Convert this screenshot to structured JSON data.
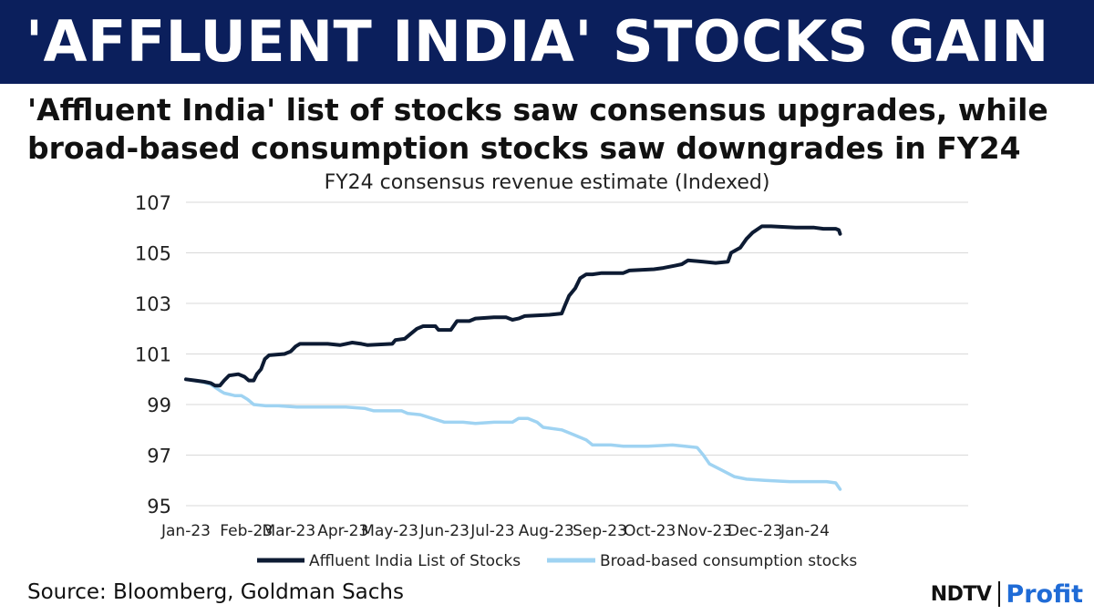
{
  "header": {
    "title": "'AFFLUENT INDIA' STOCKS GAIN",
    "subtitle_line1": "'Affluent India' list of stocks saw consensus upgrades, while",
    "subtitle_line2": "broad-based consumption stocks saw downgrades in FY24"
  },
  "footer": {
    "source": "Source: Bloomberg, Goldman Sachs",
    "logo_left": "NDTV",
    "logo_right": "Profit"
  },
  "colors": {
    "banner": "#0b1f5c",
    "affluent": "#0d1b33",
    "broad": "#9fd3f2",
    "profit": "#1f6bd6"
  },
  "chart_data": {
    "type": "line",
    "title": "FY24 consensus revenue estimate (Indexed)",
    "xlabel": "",
    "ylabel": "",
    "ylim": [
      95,
      107
    ],
    "yticks": [
      95,
      97,
      99,
      101,
      103,
      105,
      107
    ],
    "grid": true,
    "legend_position": "bottom",
    "xlim": [
      0,
      12.7
    ],
    "x_ticks": [
      {
        "label": "Jan-23",
        "x": 0
      },
      {
        "label": "Feb-23",
        "x": 0.98
      },
      {
        "label": "Mar-23",
        "x": 1.67
      },
      {
        "label": "Apr-23",
        "x": 2.55
      },
      {
        "label": "May-23",
        "x": 3.31
      },
      {
        "label": "Jun-23",
        "x": 4.2
      },
      {
        "label": "Jul-23",
        "x": 4.98
      },
      {
        "label": "Aug-23",
        "x": 5.85
      },
      {
        "label": "Sep-23",
        "x": 6.72
      },
      {
        "label": "Oct-23",
        "x": 7.53
      },
      {
        "label": "Nov-23",
        "x": 8.42
      },
      {
        "label": "Dec-23",
        "x": 9.24
      },
      {
        "label": "Jan-24",
        "x": 10.05
      }
    ],
    "series": [
      {
        "name": "Affluent India List of Stocks",
        "color": "#0d1b33",
        "points": [
          [
            0.0,
            100.0
          ],
          [
            0.15,
            99.95
          ],
          [
            0.3,
            99.9
          ],
          [
            0.4,
            99.85
          ],
          [
            0.47,
            99.75
          ],
          [
            0.55,
            99.75
          ],
          [
            0.62,
            99.95
          ],
          [
            0.7,
            100.15
          ],
          [
            0.85,
            100.2
          ],
          [
            0.95,
            100.1
          ],
          [
            1.02,
            99.95
          ],
          [
            1.1,
            99.95
          ],
          [
            1.15,
            100.2
          ],
          [
            1.22,
            100.4
          ],
          [
            1.28,
            100.8
          ],
          [
            1.35,
            100.95
          ],
          [
            1.6,
            101.0
          ],
          [
            1.7,
            101.1
          ],
          [
            1.78,
            101.3
          ],
          [
            1.85,
            101.4
          ],
          [
            2.3,
            101.4
          ],
          [
            2.5,
            101.35
          ],
          [
            2.7,
            101.45
          ],
          [
            2.85,
            101.4
          ],
          [
            2.95,
            101.35
          ],
          [
            3.35,
            101.4
          ],
          [
            3.4,
            101.55
          ],
          [
            3.55,
            101.6
          ],
          [
            3.65,
            101.8
          ],
          [
            3.75,
            102.0
          ],
          [
            3.85,
            102.1
          ],
          [
            4.05,
            102.1
          ],
          [
            4.1,
            101.95
          ],
          [
            4.3,
            101.95
          ],
          [
            4.4,
            102.3
          ],
          [
            4.6,
            102.3
          ],
          [
            4.7,
            102.4
          ],
          [
            5.0,
            102.45
          ],
          [
            5.2,
            102.45
          ],
          [
            5.3,
            102.35
          ],
          [
            5.4,
            102.4
          ],
          [
            5.5,
            102.5
          ],
          [
            5.9,
            102.55
          ],
          [
            6.1,
            102.6
          ],
          [
            6.15,
            102.9
          ],
          [
            6.22,
            103.3
          ],
          [
            6.32,
            103.6
          ],
          [
            6.4,
            104.0
          ],
          [
            6.5,
            104.15
          ],
          [
            6.6,
            104.15
          ],
          [
            6.75,
            104.2
          ],
          [
            7.1,
            104.2
          ],
          [
            7.2,
            104.3
          ],
          [
            7.6,
            104.35
          ],
          [
            7.75,
            104.4
          ],
          [
            7.95,
            104.5
          ],
          [
            8.05,
            104.55
          ],
          [
            8.15,
            104.7
          ],
          [
            8.4,
            104.65
          ],
          [
            8.6,
            104.6
          ],
          [
            8.8,
            104.65
          ],
          [
            8.85,
            105.0
          ],
          [
            9.0,
            105.2
          ],
          [
            9.1,
            105.55
          ],
          [
            9.2,
            105.8
          ],
          [
            9.35,
            106.05
          ],
          [
            9.5,
            106.05
          ],
          [
            9.9,
            106.0
          ],
          [
            10.2,
            106.0
          ],
          [
            10.35,
            105.95
          ],
          [
            10.55,
            105.95
          ],
          [
            10.6,
            105.9
          ],
          [
            10.62,
            105.75
          ]
        ]
      },
      {
        "name": "Broad-based consumption stocks",
        "color": "#9fd3f2",
        "points": [
          [
            0.0,
            100.0
          ],
          [
            0.25,
            99.9
          ],
          [
            0.4,
            99.8
          ],
          [
            0.55,
            99.55
          ],
          [
            0.62,
            99.45
          ],
          [
            0.8,
            99.35
          ],
          [
            0.9,
            99.35
          ],
          [
            1.0,
            99.2
          ],
          [
            1.1,
            99.0
          ],
          [
            1.3,
            98.95
          ],
          [
            1.5,
            98.95
          ],
          [
            1.8,
            98.9
          ],
          [
            2.2,
            98.9
          ],
          [
            2.6,
            98.9
          ],
          [
            2.9,
            98.85
          ],
          [
            3.05,
            98.75
          ],
          [
            3.5,
            98.75
          ],
          [
            3.6,
            98.65
          ],
          [
            3.8,
            98.6
          ],
          [
            4.0,
            98.45
          ],
          [
            4.2,
            98.3
          ],
          [
            4.5,
            98.3
          ],
          [
            4.7,
            98.25
          ],
          [
            5.0,
            98.3
          ],
          [
            5.3,
            98.3
          ],
          [
            5.4,
            98.45
          ],
          [
            5.55,
            98.45
          ],
          [
            5.7,
            98.3
          ],
          [
            5.8,
            98.1
          ],
          [
            6.1,
            98.0
          ],
          [
            6.3,
            97.8
          ],
          [
            6.5,
            97.6
          ],
          [
            6.6,
            97.4
          ],
          [
            6.9,
            97.4
          ],
          [
            7.1,
            97.35
          ],
          [
            7.5,
            97.35
          ],
          [
            7.9,
            97.4
          ],
          [
            8.1,
            97.35
          ],
          [
            8.3,
            97.3
          ],
          [
            8.4,
            97.0
          ],
          [
            8.5,
            96.65
          ],
          [
            8.7,
            96.4
          ],
          [
            8.9,
            96.15
          ],
          [
            9.1,
            96.05
          ],
          [
            9.4,
            96.0
          ],
          [
            9.8,
            95.95
          ],
          [
            10.1,
            95.95
          ],
          [
            10.4,
            95.95
          ],
          [
            10.55,
            95.9
          ],
          [
            10.62,
            95.65
          ]
        ]
      }
    ]
  }
}
